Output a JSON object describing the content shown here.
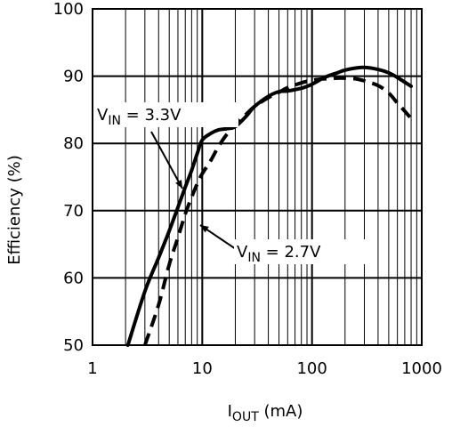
{
  "chart_data": {
    "type": "line",
    "title": "",
    "xlabel": {
      "main": "I",
      "sub": "OUT",
      "rest": " (mA)"
    },
    "ylabel": "Efficiency (%)",
    "xscale": "log",
    "xlim": [
      1,
      1000
    ],
    "ylim": [
      50,
      100
    ],
    "grid": true,
    "x_ticks": [
      1,
      10,
      100,
      1000
    ],
    "x_tick_labels": [
      "1",
      "10",
      "100",
      "1000"
    ],
    "y_ticks": [
      50,
      60,
      70,
      80,
      90,
      100
    ],
    "y_tick_labels": [
      "50",
      "60",
      "70",
      "80",
      "90",
      "100"
    ],
    "series": [
      {
        "name": "VIN = 3.3V",
        "style": "solid",
        "x": [
          2.1,
          3,
          4,
          5,
          6,
          7,
          8,
          9,
          10,
          12,
          14,
          17,
          20,
          25,
          30,
          40,
          50,
          60,
          80,
          100,
          130,
          170,
          200,
          250,
          300,
          400,
          500,
          600,
          800
        ],
        "y": [
          50,
          58,
          63,
          67,
          70.5,
          73.5,
          76,
          78.5,
          80.5,
          81.5,
          82,
          82.2,
          82.5,
          84,
          85.5,
          87,
          87.7,
          87.8,
          88.2,
          88.8,
          89.8,
          90.5,
          90.9,
          91.2,
          91.3,
          91,
          90.5,
          89.8,
          88.5
        ]
      },
      {
        "name": "VIN = 2.7V",
        "style": "dashed",
        "x": [
          3,
          4,
          5,
          6,
          7,
          8,
          9,
          10,
          12,
          14,
          17,
          20,
          25,
          30,
          40,
          50,
          60,
          80,
          100,
          130,
          170,
          200,
          250,
          300,
          400,
          500,
          600,
          700,
          800
        ],
        "y": [
          50,
          56,
          62,
          66,
          69.5,
          72,
          74,
          75.5,
          77.5,
          79.5,
          81.5,
          82.8,
          84.3,
          85.5,
          86.8,
          87.6,
          88.3,
          89,
          89.4,
          89.6,
          89.7,
          89.7,
          89.6,
          89.3,
          88.6,
          87.5,
          86,
          84.8,
          83.7
        ]
      }
    ],
    "annotations": [
      {
        "main": "V",
        "sub": "IN",
        "rest": " = 3.3V",
        "target": [
          7,
          73
        ]
      },
      {
        "main": "V",
        "sub": "IN",
        "rest": " = 2.7V",
        "target": [
          8,
          72
        ]
      }
    ]
  }
}
